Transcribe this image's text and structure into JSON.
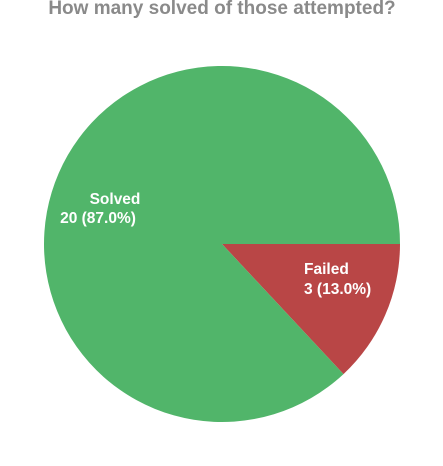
{
  "colors": {
    "solved": "#51b56a",
    "failed": "#b94646",
    "title": "#8a8a8a",
    "label": "#ffffff"
  },
  "chart_data": {
    "type": "pie",
    "title": "How many solved of those attempted?",
    "slices": [
      {
        "label": "Solved",
        "value": 20,
        "percent": 87.0,
        "value_text": "20 (87.0%)"
      },
      {
        "label": "Failed",
        "value": 3,
        "percent": 13.0,
        "value_text": "3 (13.0%)"
      }
    ],
    "legend": "none"
  }
}
